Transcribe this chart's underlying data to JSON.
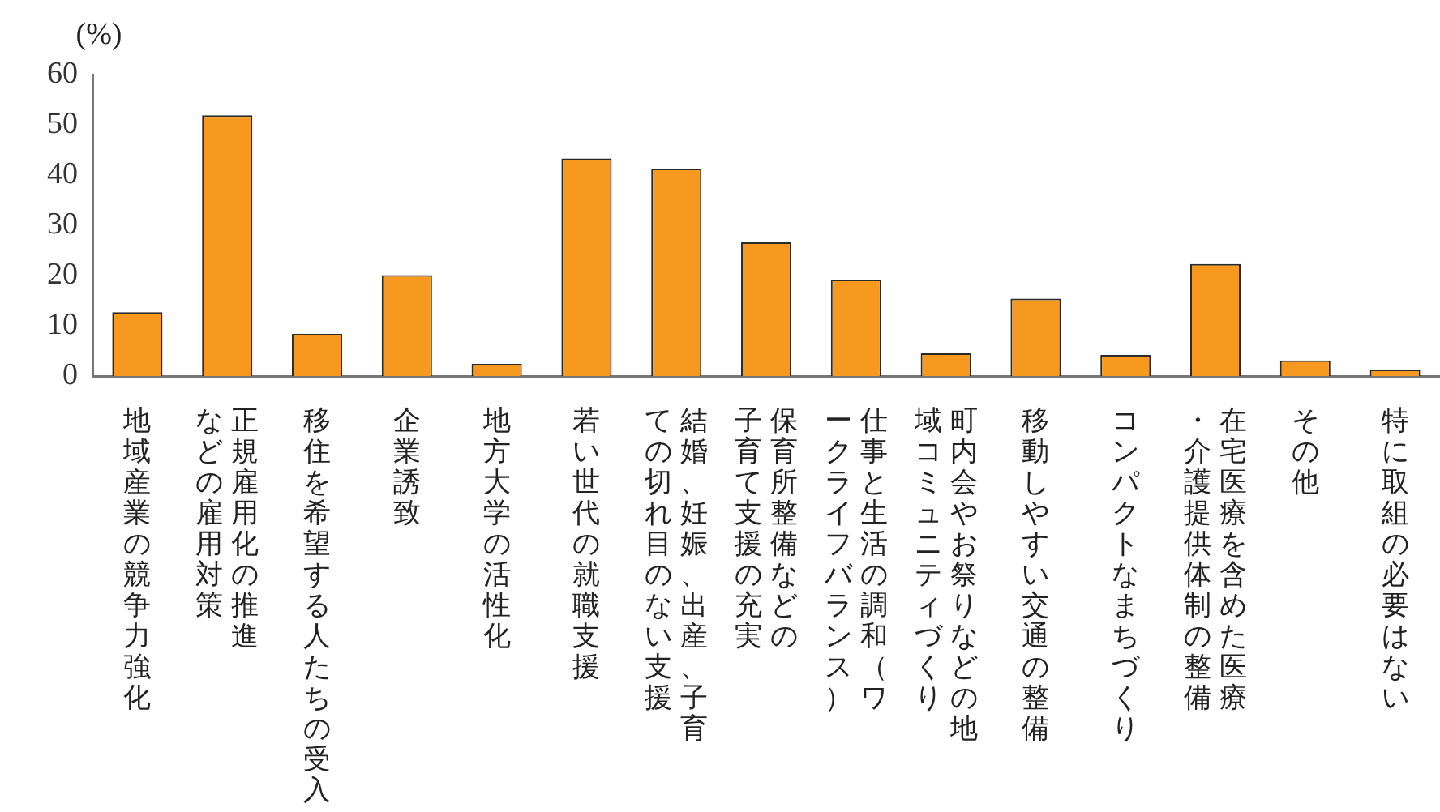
{
  "chart_data": {
    "type": "bar",
    "ylabel": "(%)",
    "categories": [
      "地域産業の競争力強化",
      "正規雇用化の推進などの雇用対策",
      "移住を希望する人たちの受入",
      "企業誘致",
      "地方大学の活性化",
      "若い世代の就職支援",
      "結婚、妊娠、出産、子育ての切れ目のない支援",
      "保育所整備などの子育て支援の充実",
      "仕事と生活の調和（ワークライフバランス）",
      "町内会やお祭りなどの地域コミュニティづくり",
      "移動しやすい交通の整備",
      "コンパクトなまちづくり",
      "在宅医療を含めた医療・介護提供体制の整備",
      "その他",
      "特に取組の必要はない"
    ],
    "values": [
      12.7,
      51.9,
      8.4,
      20.1,
      2.4,
      43.3,
      41.3,
      26.6,
      19.2,
      4.5,
      15.4,
      4.2,
      22.3,
      3.1,
      1.3
    ],
    "color": "#f7981f",
    "ylim": [
      0,
      60
    ],
    "yticks": [
      0,
      10,
      20,
      30,
      40,
      50,
      60
    ],
    "grid": false,
    "legend": false
  }
}
